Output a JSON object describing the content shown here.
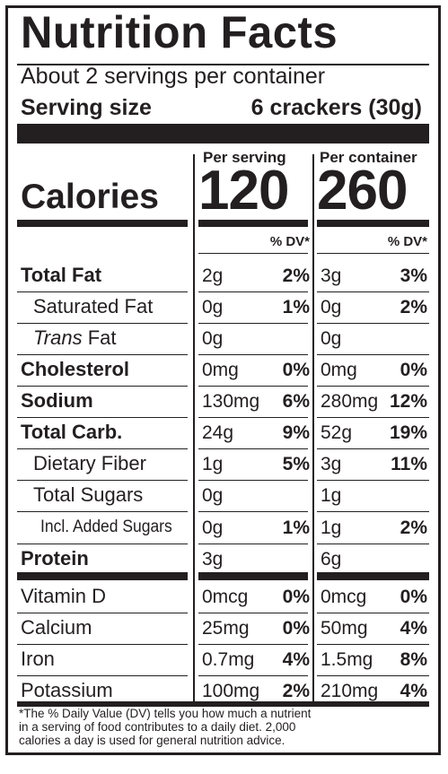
{
  "title": "Nutrition Facts",
  "servings": "About 2 servings per container",
  "serving_size_label": "Serving size",
  "serving_size_value": "6 crackers (30g)",
  "col_headers": [
    "Per serving",
    "Per container"
  ],
  "calories_label": "Calories",
  "calories": [
    "120",
    "260"
  ],
  "dv_header": "% DV*",
  "rows": [
    {
      "name": "Total Fat",
      "serv": "2g",
      "serv_dv": "2%",
      "cont": "3g",
      "cont_dv": "3%"
    },
    {
      "name": "Saturated Fat",
      "serv": "0g",
      "serv_dv": "1%",
      "cont": "0g",
      "cont_dv": "2%"
    },
    {
      "name_italic": "Trans",
      "name_rest": " Fat",
      "serv": "0g",
      "serv_dv": "",
      "cont": "0g",
      "cont_dv": ""
    },
    {
      "name": "Cholesterol",
      "serv": "0mg",
      "serv_dv": "0%",
      "cont": "0mg",
      "cont_dv": "0%"
    },
    {
      "name": "Sodium",
      "serv": "130mg",
      "serv_dv": "6%",
      "cont": "280mg",
      "cont_dv": "12%"
    },
    {
      "name": "Total Carb.",
      "serv": "24g",
      "serv_dv": "9%",
      "cont": "52g",
      "cont_dv": "19%"
    },
    {
      "name": "Dietary Fiber",
      "serv": "1g",
      "serv_dv": "5%",
      "cont": "3g",
      "cont_dv": "11%"
    },
    {
      "name": "Total Sugars",
      "serv": "0g",
      "serv_dv": "",
      "cont": "1g",
      "cont_dv": ""
    },
    {
      "name": "Incl. Added Sugars",
      "serv": "0g",
      "serv_dv": "1%",
      "cont": "1g",
      "cont_dv": "2%"
    },
    {
      "name": "Protein",
      "serv": "3g",
      "serv_dv": "",
      "cont": "6g",
      "cont_dv": ""
    },
    {
      "name": "Vitamin D",
      "serv": "0mcg",
      "serv_dv": "0%",
      "cont": "0mcg",
      "cont_dv": "0%"
    },
    {
      "name": "Calcium",
      "serv": "25mg",
      "serv_dv": "0%",
      "cont": "50mg",
      "cont_dv": "4%"
    },
    {
      "name": "Iron",
      "serv": "0.7mg",
      "serv_dv": "4%",
      "cont": "1.5mg",
      "cont_dv": "8%"
    },
    {
      "name": "Potassium",
      "serv": "100mg",
      "serv_dv": "2%",
      "cont": "210mg",
      "cont_dv": "4%"
    }
  ],
  "footnote": "*The % Daily Value (DV) tells you how much a nutrient\n in a serving of food contributes to a daily diet. 2,000\n calories a day is used for general nutrition advice."
}
